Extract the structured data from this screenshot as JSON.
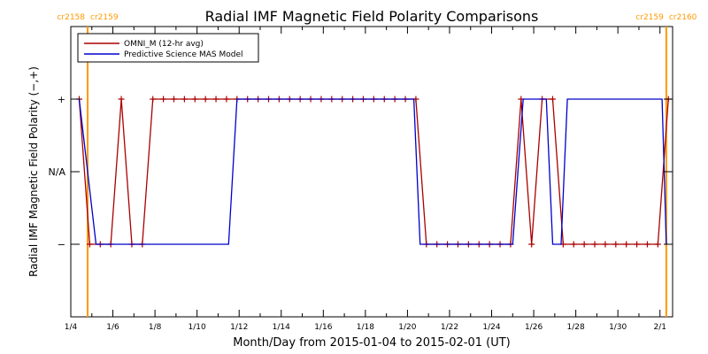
{
  "chart_data": {
    "type": "line",
    "title": "Radial IMF Magnetic Field Polarity Comparisons",
    "xlabel": "Month/Day from 2015-01-04 to 2015-02-01 (UT)",
    "ylabel": "Radial IMF Magnetic Field Polarity (−,+)",
    "x_start": "2015-01-04",
    "x_end": "2015-02-01",
    "xlim": [
      0,
      28.6
    ],
    "ylim": [
      -2,
      2
    ],
    "x_ticks": [
      {
        "x": 0,
        "label": "1/4"
      },
      {
        "x": 2,
        "label": "1/6"
      },
      {
        "x": 4,
        "label": "1/8"
      },
      {
        "x": 6,
        "label": "1/10"
      },
      {
        "x": 8,
        "label": "1/12"
      },
      {
        "x": 10,
        "label": "1/14"
      },
      {
        "x": 12,
        "label": "1/16"
      },
      {
        "x": 14,
        "label": "1/18"
      },
      {
        "x": 16,
        "label": "1/20"
      },
      {
        "x": 18,
        "label": "1/22"
      },
      {
        "x": 20,
        "label": "1/24"
      },
      {
        "x": 22,
        "label": "1/26"
      },
      {
        "x": 24,
        "label": "1/28"
      },
      {
        "x": 26,
        "label": "1/30"
      },
      {
        "x": 28,
        "label": "2/1"
      }
    ],
    "y_ticks": [
      {
        "y": 1,
        "label": "+"
      },
      {
        "y": 0,
        "label": "N/A"
      },
      {
        "y": -1,
        "label": "−"
      }
    ],
    "grid": false,
    "legend_position": "top-left",
    "markers": [
      {
        "x": 0.8,
        "label_left": "cr2158",
        "label_right": "cr2159",
        "color": "#ff9900"
      },
      {
        "x": 28.3,
        "label_left": "cr2159",
        "label_right": "cr2160",
        "color": "#ff9900"
      }
    ],
    "series": [
      {
        "name": "OMNI_M (12-hr avg)",
        "color": "#aa0000",
        "markers": true,
        "x": [
          0.4,
          0.9,
          1.4,
          1.9,
          2.4,
          2.9,
          3.4,
          3.9,
          4.4,
          4.9,
          5.4,
          5.9,
          6.4,
          6.9,
          7.4,
          7.9,
          8.4,
          8.9,
          9.4,
          9.9,
          10.4,
          10.9,
          11.4,
          11.9,
          12.4,
          12.9,
          13.4,
          13.9,
          14.4,
          14.9,
          15.4,
          15.9,
          16.4,
          16.9,
          17.4,
          17.9,
          18.4,
          18.9,
          19.4,
          19.9,
          20.4,
          20.9,
          21.4,
          21.9,
          22.4,
          22.9,
          23.4,
          23.9,
          24.4,
          24.9,
          25.4,
          25.9,
          26.4,
          26.9,
          27.4,
          27.9,
          28.4
        ],
        "y": [
          1,
          -1,
          -1,
          -1,
          1,
          -1,
          -1,
          1,
          1,
          1,
          1,
          1,
          1,
          1,
          1,
          1,
          1,
          1,
          1,
          1,
          1,
          1,
          1,
          1,
          1,
          1,
          1,
          1,
          1,
          1,
          1,
          1,
          1,
          -1,
          -1,
          -1,
          -1,
          -1,
          -1,
          -1,
          -1,
          -1,
          1,
          -1,
          1,
          1,
          -1,
          -1,
          -1,
          -1,
          -1,
          -1,
          -1,
          -1,
          -1,
          -1,
          1
        ]
      },
      {
        "name": "Predictive Science MAS Model",
        "color": "#0000cc",
        "markers": false,
        "x": [
          0.4,
          1.2,
          7.5,
          7.9,
          16.3,
          16.6,
          21.0,
          21.5,
          22.6,
          22.9,
          23.3,
          23.6,
          28.1,
          28.3
        ],
        "y": [
          1,
          -1,
          -1,
          1,
          1,
          -1,
          -1,
          1,
          1,
          -1,
          -1,
          1,
          1,
          -1
        ]
      }
    ]
  }
}
